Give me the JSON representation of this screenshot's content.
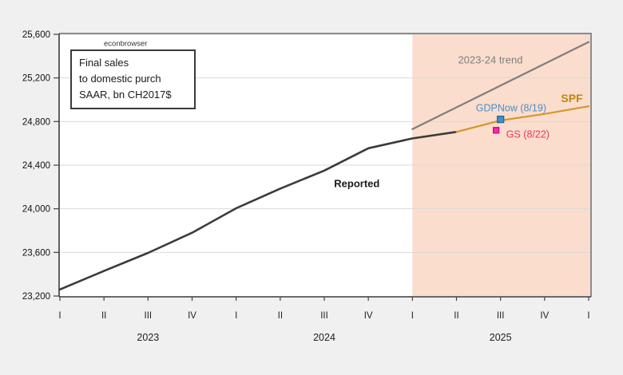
{
  "page": {
    "background": "#f0f0f0",
    "plot_background": "#ffffff"
  },
  "note_box": {
    "lines": [
      "Final sales",
      "to domestic purch",
      "SAAR, bn CH2017$"
    ]
  },
  "chart_data": {
    "type": "line",
    "title": "",
    "xlabel": "",
    "ylabel": "",
    "ylim": [
      23200,
      25600
    ],
    "grid": true,
    "grid_color": "#d9d9d9",
    "shaded_region": {
      "start_q": 8,
      "color": "#fbddcd",
      "meaning": "forecast period 2025Q1 onward"
    },
    "yticks": [
      {
        "v": 23200,
        "label": "23,200"
      },
      {
        "v": 23600,
        "label": "23,600"
      },
      {
        "v": 24000,
        "label": "24,000"
      },
      {
        "v": 24400,
        "label": "24,400"
      },
      {
        "v": 24800,
        "label": "24,800"
      },
      {
        "v": 25200,
        "label": "25,200"
      },
      {
        "v": 25600,
        "label": "25,600"
      }
    ],
    "x_tick_labels": [
      "I",
      "II",
      "III",
      "IV",
      "I",
      "II",
      "III",
      "IV",
      "I",
      "II",
      "III",
      "IV",
      "I"
    ],
    "years": [
      {
        "label": "2023",
        "center_q": 2
      },
      {
        "label": "2024",
        "center_q": 6
      },
      {
        "label": "2025",
        "center_q": 10
      }
    ],
    "series": [
      {
        "id": "reported-line",
        "name": "Reported",
        "color": "#3b3b3b",
        "width": 2.6,
        "x": [
          0,
          1,
          2,
          3,
          4,
          5,
          6,
          7,
          8,
          9
        ],
        "values": [
          23260,
          23430,
          23595,
          23780,
          24005,
          24185,
          24350,
          24555,
          24645,
          24705
        ]
      },
      {
        "id": "spf-line",
        "name": "SPF",
        "color": "#d6962b",
        "width": 2.2,
        "x": [
          9,
          10,
          11,
          12
        ],
        "values": [
          24705,
          24810,
          24870,
          24940
        ]
      },
      {
        "id": "trend-line",
        "name": "2023-24 trend",
        "color": "#7e7e7e",
        "width": 2.2,
        "x": [
          8,
          12
        ],
        "values": [
          24730,
          25530
        ]
      }
    ],
    "markers": [
      {
        "id": "gdpnow-marker",
        "q": 10,
        "v": 24820,
        "fill": "#3d93c9",
        "stroke": "#20689e",
        "size": 8
      },
      {
        "id": "gs-marker",
        "q": 9.9,
        "v": 24720,
        "fill": "#fb2ba6",
        "stroke": "#d10080",
        "size": 7
      }
    ],
    "annotations": [
      {
        "id": "watermark-econbrowser",
        "text": "econbrowser",
        "q": 1.49,
        "v": 25519,
        "color": "#333333",
        "size": 9.5,
        "weight": "normal"
      },
      {
        "id": "trend-label",
        "text": "2023-24 trend",
        "q": 9.77,
        "v": 25366,
        "color": "#7e7e7e",
        "size": 13,
        "weight": "normal"
      },
      {
        "id": "reported-label",
        "text": "Reported",
        "q": 6.74,
        "v": 24232,
        "color": "#1a1a1a",
        "size": 13,
        "weight": "bold"
      },
      {
        "id": "gdpnow-label",
        "text": "GDPNow (8/19)",
        "q": 10.24,
        "v": 24927,
        "color": "#4a90c8",
        "size": 12.5,
        "weight": "normal"
      },
      {
        "id": "gs-label",
        "text": "GS (8/22)",
        "q": 10.62,
        "v": 24685,
        "color": "#ec3a50",
        "size": 12.5,
        "weight": "normal"
      },
      {
        "id": "spf-label",
        "text": "SPF",
        "q": 11.62,
        "v": 25015,
        "color": "#c0860e",
        "size": 14,
        "weight": "bold"
      }
    ],
    "axis_colors": {
      "left_bottom": "#3a3a3a",
      "top_right": "#8c8c8c",
      "tick": "#444444",
      "tick_label": "#111111"
    },
    "legend_position": "none"
  }
}
